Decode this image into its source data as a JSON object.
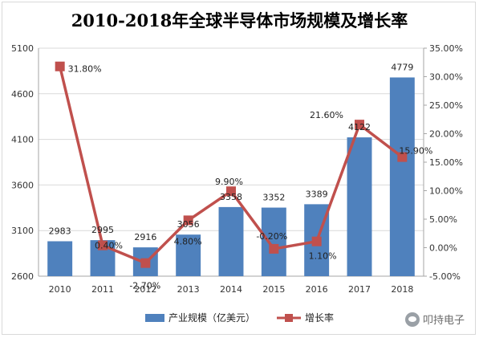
{
  "chart_data": {
    "type": "bar-line-combo",
    "title": "2010-2018年全球半导体市场规模及增长率",
    "categories": [
      "2010",
      "2011",
      "2012",
      "2013",
      "2014",
      "2015",
      "2016",
      "2017",
      "2018"
    ],
    "series": [
      {
        "name": "产业规模（亿美元）",
        "type": "bar",
        "axis": "left",
        "color": "#4f81bd",
        "values": [
          2983,
          2995,
          2916,
          3056,
          3358,
          3352,
          3389,
          4122,
          4779
        ],
        "labels": [
          "2983",
          "2995",
          "2916",
          "3056",
          "3358",
          "3352",
          "3389",
          "4122",
          "4779"
        ]
      },
      {
        "name": "增长率",
        "type": "line",
        "axis": "right",
        "color": "#c0504d",
        "values": [
          31.8,
          0.4,
          -2.7,
          4.8,
          9.9,
          -0.2,
          1.1,
          21.6,
          15.9
        ],
        "labels": [
          "31.80%",
          "0.40%",
          "-2.70%",
          "4.80%",
          "9.90%",
          "-0.20%",
          "1.10%",
          "21.60%",
          "15.90%"
        ]
      }
    ],
    "y_left": {
      "min": 2600,
      "max": 5100,
      "ticks": [
        2600,
        3100,
        3600,
        4100,
        4600,
        5100
      ],
      "tick_labels": [
        "2600",
        "3100",
        "3600",
        "4100",
        "4600",
        "5100"
      ]
    },
    "y_right": {
      "min": -5,
      "max": 35,
      "ticks": [
        -5,
        0,
        5,
        10,
        15,
        20,
        25,
        30,
        35
      ],
      "tick_labels": [
        "-5.00%",
        "0.00%",
        "5.00%",
        "10.00%",
        "15.00%",
        "20.00%",
        "25.00%",
        "30.00%",
        "35.00%"
      ]
    },
    "grid": true,
    "legend": "bottom"
  },
  "watermark": {
    "text": "叩持电子",
    "icon": "wechat-icon"
  }
}
